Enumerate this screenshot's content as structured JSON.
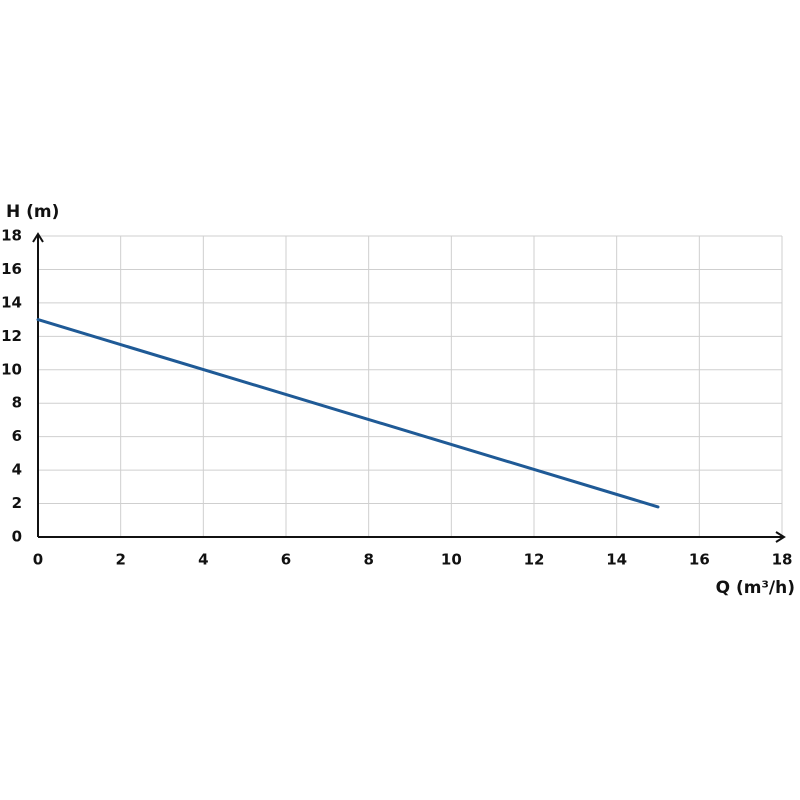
{
  "chart_data": {
    "type": "line",
    "y_label": "H (m)",
    "x_label": "Q (m³/h)",
    "x": [
      0,
      15
    ],
    "values": [
      13,
      1.8
    ],
    "color": "#1f5a96",
    "xlim": [
      0,
      18
    ],
    "xticks": [
      0,
      2,
      4,
      6,
      8,
      10,
      12,
      14,
      16,
      18
    ],
    "ylim": [
      0,
      18
    ],
    "yticks": [
      0,
      2,
      4,
      6,
      8,
      10,
      12,
      14,
      16,
      18
    ],
    "grid": true
  }
}
